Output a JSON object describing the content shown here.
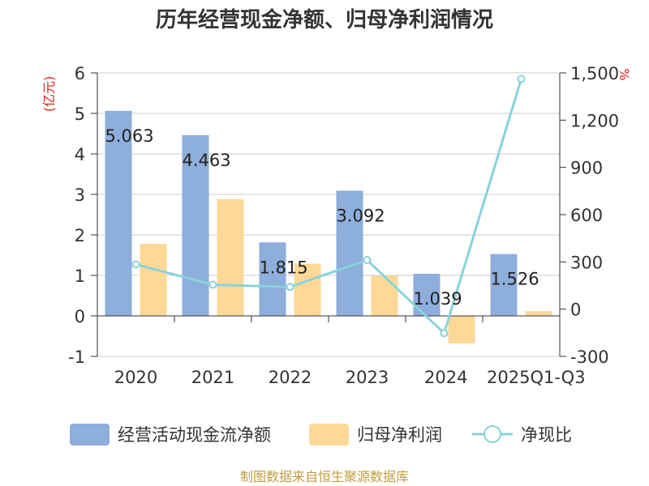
{
  "colors": {
    "bar_operating": "#8eaedb",
    "bar_profit": "#fed897",
    "line_ratio": "#89d3d9",
    "unit_text": "#e02020",
    "source_text": "#c09d3d",
    "grid": "#cccccc",
    "axis": "#333333"
  },
  "source": "制图数据来自恒生聚源数据库",
  "chart_data": {
    "type": "bar",
    "title": "历年经营现金净额、归母净利润情况",
    "categories": [
      "2020",
      "2021",
      "2022",
      "2023",
      "2024",
      "2025Q1-Q3"
    ],
    "y_left": {
      "unit": "(亿元)",
      "ylim": [
        -1,
        6
      ],
      "ticks": [
        "6",
        "5",
        "4",
        "3",
        "2",
        "1",
        "0",
        "-1"
      ]
    },
    "y_right": {
      "unit": "%",
      "ylim": [
        -300,
        1500
      ],
      "ticks": [
        "1,500",
        "1,200",
        "900",
        "600",
        "300",
        "0",
        "-300"
      ]
    },
    "grid": true,
    "legend_position": "bottom",
    "series": [
      {
        "name": "经营活动现金流净额",
        "kind": "bar",
        "axis": "left",
        "values": [
          5.063,
          4.463,
          1.815,
          3.092,
          1.039,
          1.526
        ],
        "labels": [
          "5.063",
          "4.463",
          "1.815",
          "3.092",
          "1.039",
          "1.526"
        ]
      },
      {
        "name": "归母净利润",
        "kind": "bar",
        "axis": "left",
        "values": [
          1.78,
          2.88,
          1.29,
          0.99,
          -0.68,
          0.12
        ]
      },
      {
        "name": "净现比",
        "kind": "line",
        "axis": "right",
        "values": [
          284,
          155,
          141,
          312,
          -153,
          1462
        ]
      }
    ]
  }
}
